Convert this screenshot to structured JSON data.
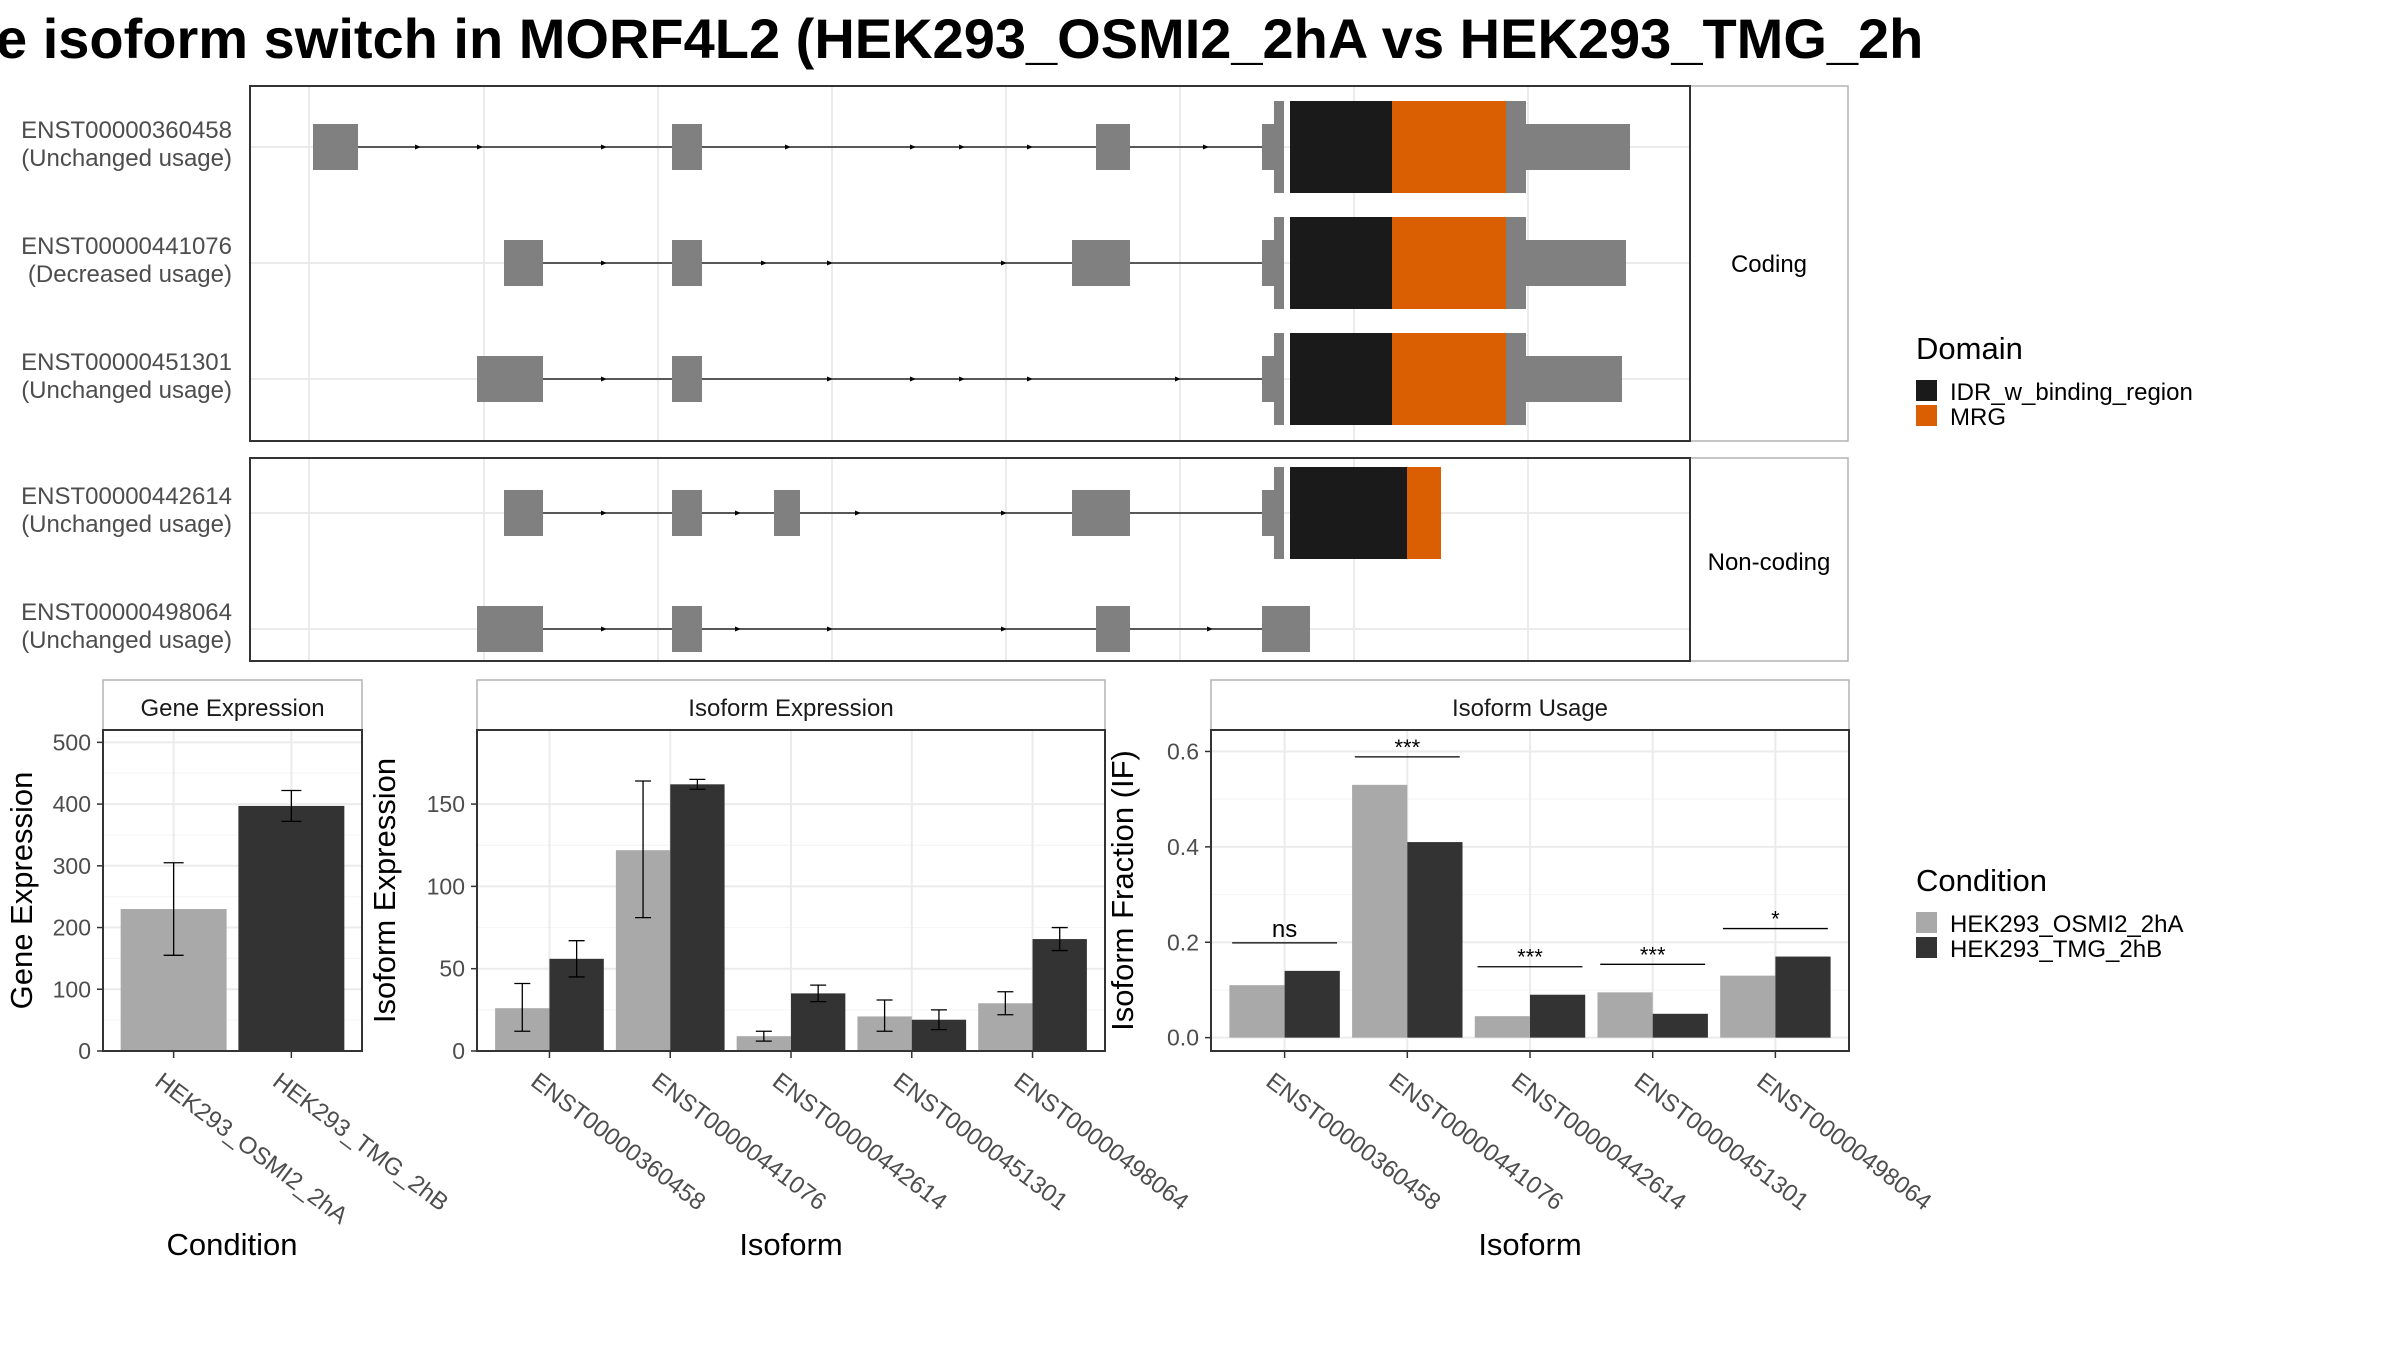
{
  "title": "e isoform switch in MORF4L2 (HEK293_OSMI2_2hA vs HEK293_TMG_2h",
  "colors": {
    "utr": "#808080",
    "idr": "#1a1a1a",
    "mrg": "#d95f02",
    "cond_a": "#a9a9a9",
    "cond_b": "#333333",
    "grid": "#ebebeb",
    "panel_border": "#333333",
    "strip_border": "#b3b3b3"
  },
  "transcript_panels": {
    "coding_label": "Coding",
    "noncoding_label": "Non-coding",
    "transcripts": [
      {
        "id": "ENST00000360458",
        "usage": "(Unchanged usage)",
        "group": "coding"
      },
      {
        "id": "ENST00000441076",
        "usage": "(Decreased usage)",
        "group": "coding"
      },
      {
        "id": "ENST00000451301",
        "usage": "(Unchanged usage)",
        "group": "coding"
      },
      {
        "id": "ENST00000442614",
        "usage": "(Unchanged usage)",
        "group": "noncoding"
      },
      {
        "id": "ENST00000498064",
        "usage": "(Unchanged usage)",
        "group": "noncoding"
      }
    ]
  },
  "domain_legend": {
    "title": "Domain",
    "items": [
      {
        "label": "IDR_w_binding_region",
        "color": "#1a1a1a"
      },
      {
        "label": "MRG",
        "color": "#d95f02"
      }
    ]
  },
  "condition_legend": {
    "title": "Condition",
    "items": [
      {
        "label": "HEK293_OSMI2_2hA",
        "color": "#a9a9a9"
      },
      {
        "label": "HEK293_TMG_2hB",
        "color": "#333333"
      }
    ]
  },
  "chart_data": [
    {
      "type": "bar",
      "title": "Gene Expression",
      "xlabel": "Condition",
      "ylabel": "Gene Expression",
      "ylim": [
        0,
        520
      ],
      "yticks": [
        0,
        100,
        200,
        300,
        400,
        500
      ],
      "categories": [
        "HEK293_OSMI2_2hA",
        "HEK293_TMG_2hB"
      ],
      "values": [
        230,
        397
      ],
      "errors": [
        [
          155,
          305
        ],
        [
          372,
          422
        ]
      ]
    },
    {
      "type": "bar",
      "title": "Isoform Expression",
      "xlabel": "Isoform",
      "ylabel": "Isoform Expression",
      "ylim": [
        0,
        195
      ],
      "yticks": [
        0,
        50,
        100,
        150
      ],
      "categories": [
        "ENST00000360458",
        "ENST00000441076",
        "ENST00000442614",
        "ENST00000451301",
        "ENST00000498064"
      ],
      "series": [
        {
          "name": "HEK293_OSMI2_2hA",
          "values": [
            26,
            122,
            9,
            21,
            29
          ],
          "errors": [
            [
              12,
              41
            ],
            [
              81,
              164
            ],
            [
              6,
              12
            ],
            [
              12,
              31
            ],
            [
              22,
              36
            ]
          ]
        },
        {
          "name": "HEK293_TMG_2hB",
          "values": [
            56,
            162,
            35,
            19,
            68
          ],
          "errors": [
            [
              45,
              67
            ],
            [
              159,
              165
            ],
            [
              30,
              40
            ],
            [
              13,
              25
            ],
            [
              61,
              75
            ]
          ]
        }
      ]
    },
    {
      "type": "bar",
      "title": "Isoform Usage",
      "xlabel": "Isoform",
      "ylabel": "Isoform Fraction (IF)",
      "ylim": [
        -0.028,
        0.645
      ],
      "yticks": [
        "0.0",
        "0.2",
        "0.4",
        "0.6"
      ],
      "categories": [
        "ENST00000360458",
        "ENST00000441076",
        "ENST00000442614",
        "ENST00000451301",
        "ENST00000498064"
      ],
      "series": [
        {
          "name": "HEK293_OSMI2_2hA",
          "values": [
            0.11,
            0.53,
            0.045,
            0.095,
            0.13
          ]
        },
        {
          "name": "HEK293_TMG_2hB",
          "values": [
            0.14,
            0.41,
            0.09,
            0.05,
            0.17
          ]
        }
      ],
      "significance": [
        "ns",
        "***",
        "***",
        "***",
        "*"
      ]
    }
  ]
}
